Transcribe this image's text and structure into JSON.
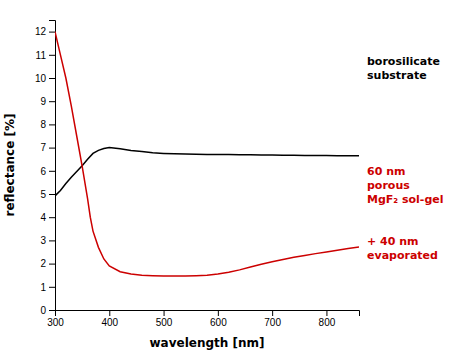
{
  "chart_data": {
    "type": "line",
    "xlabel": "wavelength [nm]",
    "ylabel": "reflectance [%]",
    "xlim": [
      300,
      860
    ],
    "ylim": [
      0,
      12.5
    ],
    "xticks": [
      300,
      400,
      500,
      600,
      700,
      800
    ],
    "yticks": [
      0,
      1,
      2,
      3,
      4,
      5,
      6,
      7,
      8,
      9,
      10,
      11,
      12
    ],
    "grid": false,
    "series": [
      {
        "color": "#000000",
        "x": [
          300,
          310,
          320,
          330,
          340,
          350,
          360,
          370,
          380,
          390,
          400,
          420,
          440,
          460,
          480,
          500,
          520,
          540,
          560,
          580,
          600,
          620,
          640,
          660,
          680,
          700,
          720,
          740,
          760,
          780,
          800,
          820,
          840,
          860
        ],
        "values": [
          4.92,
          5.15,
          5.45,
          5.72,
          5.97,
          6.22,
          6.5,
          6.75,
          6.88,
          6.96,
          7.0,
          6.95,
          6.88,
          6.83,
          6.78,
          6.75,
          6.73,
          6.72,
          6.71,
          6.7,
          6.7,
          6.7,
          6.69,
          6.69,
          6.68,
          6.68,
          6.67,
          6.67,
          6.66,
          6.66,
          6.66,
          6.65,
          6.65,
          6.65
        ]
      },
      {
        "color": "#cc0000",
        "x": [
          300,
          310,
          320,
          330,
          340,
          350,
          360,
          365,
          370,
          380,
          390,
          400,
          420,
          440,
          460,
          480,
          500,
          520,
          540,
          560,
          580,
          600,
          620,
          640,
          660,
          680,
          700,
          720,
          740,
          760,
          780,
          800,
          820,
          840,
          860
        ],
        "values": [
          12.0,
          11.0,
          10.0,
          8.8,
          7.5,
          6.2,
          4.8,
          4.0,
          3.4,
          2.7,
          2.2,
          1.9,
          1.65,
          1.55,
          1.5,
          1.48,
          1.47,
          1.47,
          1.47,
          1.48,
          1.5,
          1.55,
          1.63,
          1.73,
          1.85,
          1.97,
          2.08,
          2.18,
          2.27,
          2.35,
          2.43,
          2.5,
          2.58,
          2.65,
          2.72
        ]
      }
    ],
    "annotations": [
      {
        "lines": [
          "borosilicate",
          "substrate"
        ],
        "color": "#000000"
      },
      {
        "lines": [
          "60 nm",
          "porous",
          "MgF₂ sol-gel"
        ],
        "color": "#cc0000"
      },
      {
        "lines": [
          "+ 40 nm",
          "evaporated"
        ],
        "color": "#cc0000"
      }
    ]
  }
}
